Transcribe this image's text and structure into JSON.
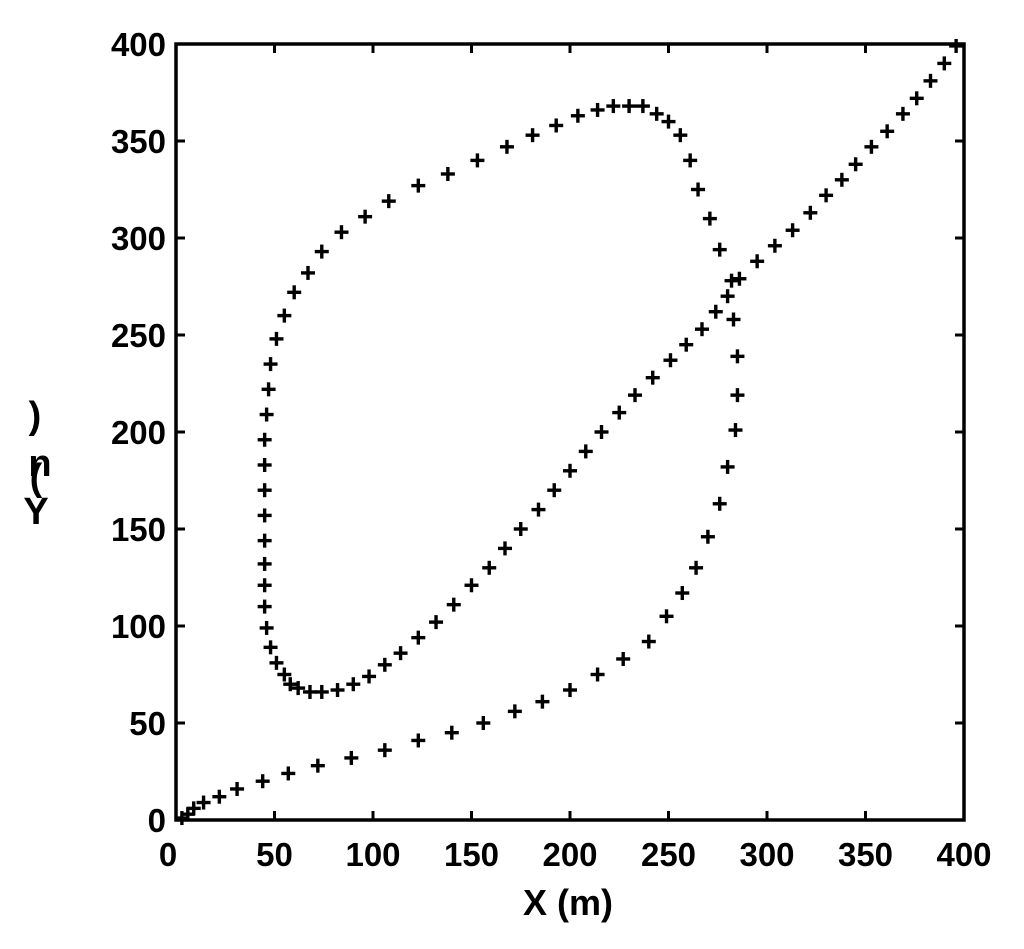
{
  "chart_data": {
    "type": "scatter",
    "marker": "plus",
    "marker_color": "#000000",
    "title": "",
    "xlabel": "X (m)",
    "ylabel_fragments": [
      ")",
      "n",
      "(",
      "Y"
    ],
    "xlim": [
      0,
      400
    ],
    "ylim": [
      0,
      400
    ],
    "xticks": [
      "0",
      "50",
      "100",
      "150",
      "200",
      "250",
      "300",
      "350",
      "400"
    ],
    "yticks": [
      "0",
      "50",
      "100",
      "150",
      "200",
      "250",
      "300",
      "350",
      "400"
    ],
    "grid": false,
    "legend": "none",
    "series": [
      {
        "points": [
          [
            3,
            1
          ],
          [
            6,
            3
          ],
          [
            9,
            6
          ],
          [
            14,
            9
          ],
          [
            22,
            12
          ],
          [
            31,
            16
          ],
          [
            44,
            20
          ],
          [
            57,
            24
          ],
          [
            72,
            28
          ],
          [
            89,
            32
          ],
          [
            106,
            36
          ],
          [
            123,
            41
          ],
          [
            140,
            45
          ],
          [
            156,
            50
          ],
          [
            172,
            56
          ],
          [
            186,
            61
          ],
          [
            200,
            67
          ],
          [
            214,
            75
          ],
          [
            227,
            83
          ],
          [
            240,
            92
          ],
          [
            249,
            105
          ],
          [
            257,
            117
          ],
          [
            264,
            130
          ],
          [
            270,
            146
          ],
          [
            276,
            163
          ],
          [
            280,
            182
          ],
          [
            284,
            201
          ],
          [
            285,
            219
          ],
          [
            285,
            239
          ],
          [
            283,
            258
          ],
          [
            282,
            278
          ],
          [
            276,
            294
          ],
          [
            271,
            310
          ],
          [
            265,
            325
          ],
          [
            261,
            340
          ],
          [
            256,
            353
          ],
          [
            250,
            360
          ],
          [
            244,
            364
          ],
          [
            237,
            368
          ],
          [
            230,
            368
          ],
          [
            222,
            368
          ],
          [
            214,
            366
          ],
          [
            204,
            363
          ],
          [
            193,
            358
          ],
          [
            181,
            353
          ],
          [
            168,
            347
          ],
          [
            153,
            340
          ],
          [
            138,
            333
          ],
          [
            123,
            327
          ],
          [
            108,
            319
          ],
          [
            96,
            311
          ],
          [
            84,
            303
          ],
          [
            74,
            293
          ],
          [
            67,
            282
          ],
          [
            60,
            272
          ],
          [
            55,
            260
          ],
          [
            51,
            248
          ],
          [
            48,
            235
          ],
          [
            47,
            222
          ],
          [
            46,
            209
          ],
          [
            45,
            196
          ],
          [
            45,
            183
          ],
          [
            45,
            170
          ],
          [
            45,
            157
          ],
          [
            45,
            144
          ],
          [
            45,
            132
          ],
          [
            45,
            121
          ],
          [
            45,
            110
          ],
          [
            46,
            99
          ],
          [
            48,
            89
          ],
          [
            51,
            81
          ],
          [
            55,
            75
          ],
          [
            58,
            70
          ],
          [
            62,
            68
          ],
          [
            68,
            66
          ],
          [
            74,
            66
          ],
          [
            82,
            67
          ],
          [
            90,
            70
          ],
          [
            98,
            74
          ],
          [
            106,
            80
          ],
          [
            114,
            86
          ],
          [
            123,
            94
          ],
          [
            132,
            102
          ],
          [
            141,
            111
          ],
          [
            150,
            121
          ],
          [
            159,
            130
          ],
          [
            167,
            140
          ],
          [
            175,
            150
          ],
          [
            184,
            160
          ],
          [
            192,
            170
          ],
          [
            200,
            180
          ],
          [
            208,
            190
          ],
          [
            216,
            200
          ],
          [
            225,
            210
          ],
          [
            233,
            219
          ],
          [
            242,
            228
          ],
          [
            251,
            237
          ],
          [
            259,
            245
          ],
          [
            267,
            253
          ],
          [
            274,
            262
          ],
          [
            280,
            270
          ],
          [
            286,
            279
          ],
          [
            295,
            288
          ],
          [
            304,
            296
          ],
          [
            313,
            304
          ],
          [
            322,
            313
          ],
          [
            330,
            322
          ],
          [
            338,
            330
          ],
          [
            345,
            338
          ],
          [
            353,
            347
          ],
          [
            361,
            355
          ],
          [
            369,
            364
          ],
          [
            376,
            372
          ],
          [
            383,
            381
          ],
          [
            390,
            390
          ],
          [
            396,
            399
          ]
        ]
      }
    ]
  }
}
